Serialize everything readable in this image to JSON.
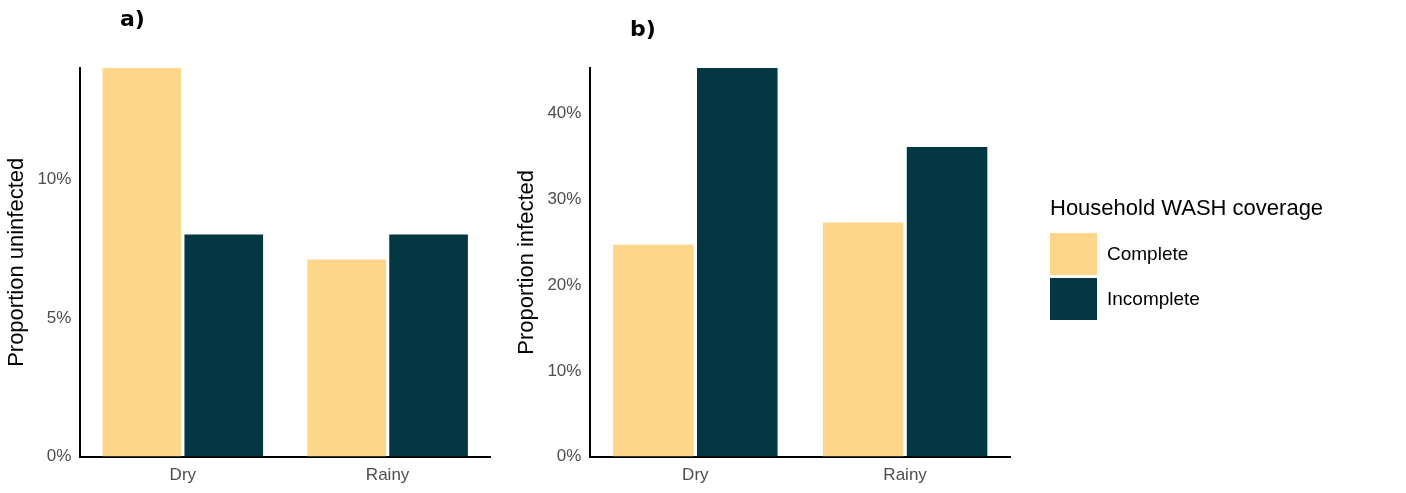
{
  "chart_data": [
    {
      "type": "bar",
      "title": "a)",
      "ylabel": "Proportion uninfected",
      "categories": [
        "Dry",
        "Rainy"
      ],
      "series": [
        {
          "color": "#fdd68a",
          "values": [
            14.0,
            7.1
          ]
        },
        {
          "color": "#023743",
          "values": [
            8.0,
            8.0
          ]
        }
      ],
      "ylim": [
        0,
        14
      ],
      "yticks": [
        {
          "value": 0,
          "label": "0%"
        },
        {
          "value": 5,
          "label": "5%"
        },
        {
          "value": 10,
          "label": "10%"
        }
      ],
      "grid": false,
      "legend": false
    },
    {
      "type": "bar",
      "title": "b)",
      "ylabel": "Proportion infected",
      "categories": [
        "Dry",
        "Rainy"
      ],
      "legend_title": "Household WASH coverage",
      "series": [
        {
          "name": "Complete",
          "color": "#fdd68a",
          "values": [
            24.7,
            27.3
          ]
        },
        {
          "name": "Incomplete",
          "color": "#023743",
          "values": [
            45.3,
            36.1
          ]
        }
      ],
      "ylim": [
        0,
        45.3
      ],
      "yticks": [
        {
          "value": 0,
          "label": "0%"
        },
        {
          "value": 10,
          "label": "10%"
        },
        {
          "value": 20,
          "label": "20%"
        },
        {
          "value": 30,
          "label": "30%"
        },
        {
          "value": 40,
          "label": "40%"
        }
      ],
      "grid": false,
      "legend": "right"
    }
  ]
}
